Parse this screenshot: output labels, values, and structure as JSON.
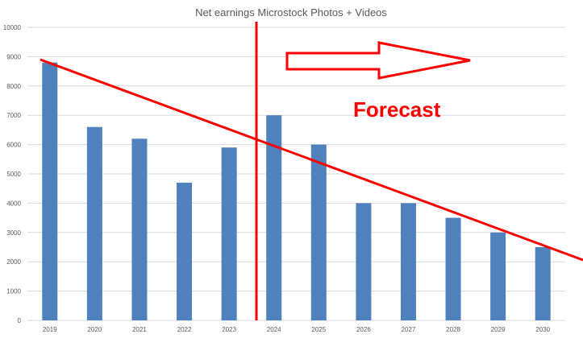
{
  "chart_data": {
    "type": "bar",
    "title": "Net earnings Microstock Photos + Videos",
    "categories": [
      "2019",
      "2020",
      "2021",
      "2022",
      "2023",
      "2024",
      "2025",
      "2026",
      "2027",
      "2028",
      "2029",
      "2030"
    ],
    "values": [
      8800,
      6600,
      6200,
      4700,
      5900,
      7000,
      6000,
      4000,
      4000,
      3500,
      3000,
      2500
    ],
    "ylim": [
      0,
      10000
    ],
    "yticks": [
      0,
      1000,
      2000,
      3000,
      4000,
      5000,
      6000,
      7000,
      8000,
      9000,
      10000
    ],
    "xlabel": "",
    "ylabel": "",
    "grid": true,
    "bar_color": "#4f81bd",
    "annotations": {
      "forecast_label": "Forecast",
      "color": "#ff0000",
      "divider_between": [
        "2023",
        "2024"
      ],
      "trend_line": "declining, drawn by hand",
      "arrow": "right-pointing outline arrow"
    }
  }
}
